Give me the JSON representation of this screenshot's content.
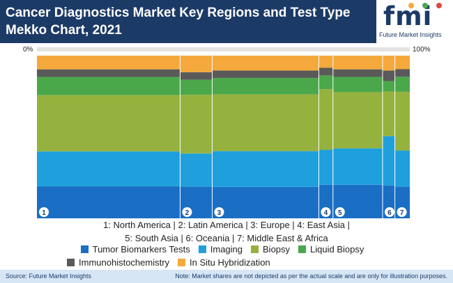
{
  "header": {
    "title": "Cancer Diagnostics Market Key Regions and Test Type Mekko Chart, 2021",
    "logo_text": "fmi",
    "logo_subtitle": "Future Market Insights"
  },
  "chart_data": {
    "type": "mekko",
    "axis_start_label": "0%",
    "axis_end_label": "100%",
    "colors": {
      "Tumor Biomarkers Tests": "#1a6fc4",
      "Imaging": "#1fa0dc",
      "Biopsy": "#96b23e",
      "Liquid Biopsy": "#4aa84a",
      "Immunohistochemistry": "#5a5a5a",
      "In Situ Hybridization": "#f5a93c"
    },
    "series_order": [
      "Tumor Biomarkers Tests",
      "Imaging",
      "Biopsy",
      "Liquid Biopsy",
      "Immunohistochemistry",
      "In Situ Hybridization"
    ],
    "regions": [
      {
        "marker": "1",
        "name": "North America",
        "width": 38.4,
        "shares": [
          22,
          23,
          37,
          12,
          5,
          9
        ]
      },
      {
        "marker": "2",
        "name": "Latin America",
        "width": 8.6,
        "shares": [
          22,
          22,
          39,
          10,
          5,
          11
        ]
      },
      {
        "marker": "3",
        "name": "Europe",
        "width": 28.6,
        "shares": [
          22,
          24,
          38,
          11,
          5,
          10
        ]
      },
      {
        "marker": "4",
        "name": "East Asia",
        "width": 3.8,
        "shares": [
          23,
          23,
          40,
          9,
          5,
          8
        ]
      },
      {
        "marker": "5",
        "name": "South Asia",
        "width": 13.3,
        "shares": [
          23,
          24,
          37,
          10,
          5,
          9
        ]
      },
      {
        "marker": "6",
        "name": "Oceania",
        "width": 3.3,
        "shares": [
          23,
          33,
          30,
          7,
          7,
          10
        ]
      },
      {
        "marker": "7",
        "name": "Middle East & Africa",
        "width": 4.0,
        "shares": [
          22,
          24,
          39,
          10,
          5,
          9
        ]
      }
    ]
  },
  "legend": {
    "regions_line1": "1: North America   |   2: Latin America   |   3: Europe   |   4: East Asia   |",
    "regions_line2": "5: South Asia   |   6: Oceania   |   7: Middle East & Africa",
    "series": [
      "Tumor Biomarkers Tests",
      "Imaging",
      "Biopsy",
      "Liquid Biopsy",
      "Immunohistochemistry",
      "In Situ Hybridization"
    ]
  },
  "footer": {
    "source": "Source: Future Market Insights",
    "note": "Note: Market shares are not depicted as per the actual scale and are only for illustration purposes."
  }
}
